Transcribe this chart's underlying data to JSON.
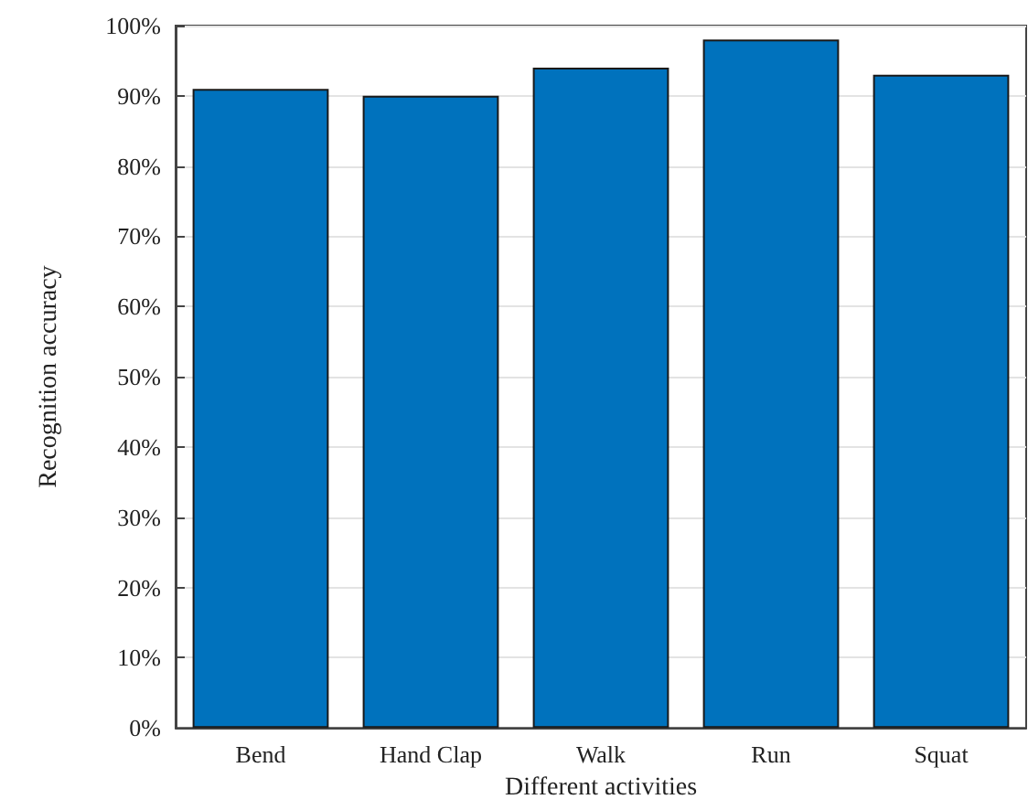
{
  "chart_data": {
    "type": "bar",
    "xlabel": "Different activities",
    "ylabel": "Recognition accuracy",
    "categories": [
      "Bend",
      "Hand Clap",
      "Walk",
      "Run",
      "Squat"
    ],
    "values": [
      91,
      90,
      94,
      98,
      93
    ],
    "color": "#0072bd",
    "ylim": [
      0,
      100
    ],
    "yticks": [
      {
        "value": 0,
        "label": "0%"
      },
      {
        "value": 10,
        "label": "10%"
      },
      {
        "value": 20,
        "label": "20%"
      },
      {
        "value": 30,
        "label": "30%"
      },
      {
        "value": 40,
        "label": "40%"
      },
      {
        "value": 50,
        "label": "50%"
      },
      {
        "value": 60,
        "label": "60%"
      },
      {
        "value": 70,
        "label": "70%"
      },
      {
        "value": 80,
        "label": "80%"
      },
      {
        "value": 90,
        "label": "90%"
      },
      {
        "value": 100,
        "label": "100%"
      }
    ],
    "grid": "y"
  }
}
